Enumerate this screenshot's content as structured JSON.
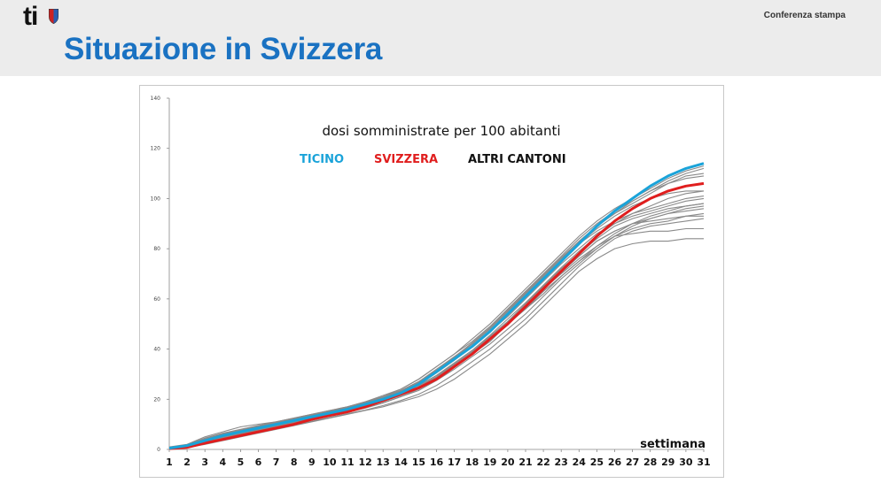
{
  "header": {
    "logo_text": "ti",
    "right_label": "Conferenza stampa"
  },
  "page": {
    "title": "Situazione in Svizzera"
  },
  "colors": {
    "ticino": "#1aa3d9",
    "svizzera": "#e01e1e",
    "altri": "#111111",
    "others_lines": "#8a8a8a",
    "title_blue": "#1a72c2"
  },
  "chart_data": {
    "type": "line",
    "title": "dosi somministrate per 100 abitanti",
    "xlabel": "settimana",
    "ylabel": "",
    "xlim": [
      1,
      31
    ],
    "ylim": [
      0,
      140
    ],
    "yticks": [
      0,
      20,
      40,
      60,
      80,
      100,
      120,
      140
    ],
    "x": [
      1,
      2,
      3,
      4,
      5,
      6,
      7,
      8,
      9,
      10,
      11,
      12,
      13,
      14,
      15,
      16,
      17,
      18,
      19,
      20,
      21,
      22,
      23,
      24,
      25,
      26,
      27,
      28,
      29,
      30,
      31
    ],
    "legend": [
      {
        "label": "TICINO",
        "color": "#1aa3d9"
      },
      {
        "label": "SVIZZERA",
        "color": "#e01e1e"
      },
      {
        "label": "ALTRI CANTONI",
        "color": "#111111"
      }
    ],
    "series": [
      {
        "name": "TICINO",
        "color": "#1aa3d9",
        "values": [
          0.5,
          1.5,
          3.5,
          5.5,
          7,
          8.5,
          10,
          11.5,
          13,
          14.5,
          16,
          18,
          20,
          22.5,
          26,
          31,
          36,
          41,
          47,
          54,
          61,
          68,
          75,
          82,
          89,
          95,
          100,
          105,
          109,
          112,
          114
        ]
      },
      {
        "name": "SVIZZERA",
        "color": "#e01e1e",
        "values": [
          0.3,
          0.8,
          2.5,
          4,
          5.5,
          7,
          8.5,
          10,
          12,
          13.5,
          15,
          17,
          19.5,
          22,
          24.5,
          28,
          33,
          38,
          44,
          50,
          57,
          64,
          71,
          78,
          85,
          91,
          96,
          100,
          103,
          105,
          106
        ]
      }
    ],
    "others_values": [
      [
        1,
        2,
        5,
        7,
        9,
        10,
        11,
        12.5,
        14,
        15.5,
        17,
        19,
        21,
        23.5,
        27,
        32,
        37,
        42,
        48,
        55,
        62,
        69,
        76,
        83,
        89,
        94,
        98,
        102,
        106,
        109,
        110
      ],
      [
        0.5,
        1,
        3,
        4.5,
        6,
        7.5,
        9,
        10.5,
        12,
        13.5,
        15,
        16.5,
        18.5,
        21,
        24,
        28,
        33,
        38,
        43,
        50,
        56,
        62,
        69,
        75,
        80,
        85,
        88,
        90,
        91,
        93,
        94
      ],
      [
        0.8,
        1.5,
        4,
        6,
        7.5,
        9,
        10.5,
        12,
        13.5,
        15,
        16.5,
        18.5,
        21,
        24,
        28,
        33,
        38,
        44,
        50,
        57,
        64,
        71,
        78,
        85,
        91,
        96,
        100,
        104,
        108,
        111,
        113
      ],
      [
        0.3,
        0.8,
        2,
        3.5,
        5,
        6.5,
        8,
        9.5,
        11,
        12.5,
        14,
        15.5,
        17,
        19,
        21,
        24,
        28,
        33,
        38,
        44,
        50,
        57,
        64,
        71,
        76,
        80,
        82,
        83,
        83,
        84,
        84
      ],
      [
        0.6,
        1.2,
        3.5,
        5.5,
        7,
        8.5,
        10,
        11.5,
        13,
        14.5,
        16,
        18,
        20,
        22.5,
        25.5,
        29.5,
        34,
        39,
        45,
        51,
        58,
        65,
        71,
        77,
        83,
        87,
        90,
        92,
        94,
        95,
        96
      ],
      [
        0.4,
        1,
        2.8,
        4.5,
        6,
        7.5,
        9,
        10.5,
        12,
        13.5,
        15,
        17,
        19,
        21.5,
        24.5,
        28.5,
        33,
        38,
        44,
        50,
        56,
        63,
        69,
        75,
        81,
        86,
        90,
        93,
        95,
        97,
        98
      ],
      [
        0.7,
        1.4,
        3.8,
        5.8,
        7.5,
        9,
        10.5,
        12,
        13.5,
        15,
        16.5,
        18.5,
        20.5,
        23,
        26.5,
        31,
        36,
        41,
        47,
        54,
        61,
        68,
        75,
        82,
        88,
        93,
        97,
        100,
        102,
        103,
        103
      ],
      [
        0.5,
        1.1,
        3,
        5,
        6.5,
        8,
        9.5,
        11,
        12.5,
        14,
        15.5,
        17.5,
        19.5,
        22,
        25,
        29,
        34,
        39,
        45,
        51,
        58,
        65,
        72,
        78,
        84,
        89,
        92,
        94,
        96,
        97,
        98
      ],
      [
        0.9,
        1.8,
        4.5,
        6.5,
        8,
        9.5,
        11,
        12.5,
        14,
        15.5,
        17,
        19,
        21.5,
        24,
        28,
        33,
        38,
        43,
        49,
        56,
        63,
        70,
        77,
        84,
        90,
        95,
        99,
        103,
        106,
        108,
        109
      ],
      [
        0.3,
        0.7,
        2.2,
        3.8,
        5.2,
        6.7,
        8.2,
        9.7,
        11.2,
        12.7,
        14.2,
        15.7,
        17.5,
        19.5,
        22,
        25.5,
        30,
        35,
        40,
        46,
        52,
        59,
        66,
        73,
        79,
        84,
        87,
        89,
        90,
        91,
        92
      ],
      [
        0.6,
        1.3,
        3.3,
        5.3,
        6.8,
        8.3,
        9.8,
        11.3,
        12.8,
        14.3,
        15.8,
        17.8,
        20,
        22.5,
        26,
        30.5,
        35.5,
        41,
        47,
        53,
        60,
        67,
        74,
        80,
        86,
        90,
        93,
        95,
        97,
        99,
        100
      ],
      [
        0.4,
        0.9,
        2.6,
        4.2,
        5.7,
        7.2,
        8.7,
        10.2,
        11.7,
        13.2,
        14.7,
        16.5,
        18.5,
        21,
        23.5,
        27.5,
        32,
        37,
        42,
        48,
        54,
        61,
        68,
        74,
        80,
        85,
        89,
        92,
        94,
        96,
        97
      ],
      [
        0.8,
        1.6,
        4.2,
        6.2,
        7.7,
        9.2,
        10.7,
        12.2,
        13.7,
        15.2,
        16.7,
        18.7,
        21,
        23.5,
        27,
        31.5,
        36.5,
        42,
        48,
        55,
        62,
        69,
        76,
        82,
        87,
        91,
        94,
        96,
        98,
        100,
        101
      ],
      [
        0.5,
        1,
        2.9,
        4.7,
        6.2,
        7.7,
        9.2,
        10.7,
        12.2,
        13.7,
        15.2,
        17.2,
        19.2,
        21.8,
        25,
        29,
        34,
        39,
        45,
        51,
        57,
        64,
        70,
        76,
        81,
        85,
        86,
        87,
        87,
        88,
        88
      ],
      [
        0.7,
        1.5,
        4,
        6,
        7.5,
        9,
        10.5,
        12,
        13.5,
        15,
        16.5,
        18.5,
        20.8,
        23.3,
        26.8,
        31.5,
        36.8,
        42.5,
        48.5,
        55.5,
        62.5,
        69.5,
        76.5,
        83,
        89,
        94,
        99,
        103,
        107,
        110,
        112
      ],
      [
        0.6,
        1.2,
        3.4,
        5.2,
        6.7,
        8.2,
        9.7,
        11.2,
        12.7,
        14.2,
        15.7,
        17.7,
        19.8,
        22.3,
        25.5,
        29.5,
        34.5,
        39.5,
        45.5,
        52,
        58.5,
        65.5,
        72.5,
        79,
        85,
        90,
        94,
        97,
        100,
        102,
        103
      ],
      [
        0.5,
        1,
        3,
        4.8,
        6.3,
        7.8,
        9.3,
        10.8,
        12.3,
        13.8,
        15.3,
        17.3,
        19.3,
        21.8,
        24.8,
        28.8,
        33.5,
        38.5,
        44,
        50,
        56.5,
        63.5,
        70.5,
        77,
        83,
        87,
        90,
        91,
        92,
        93,
        93
      ]
    ]
  }
}
